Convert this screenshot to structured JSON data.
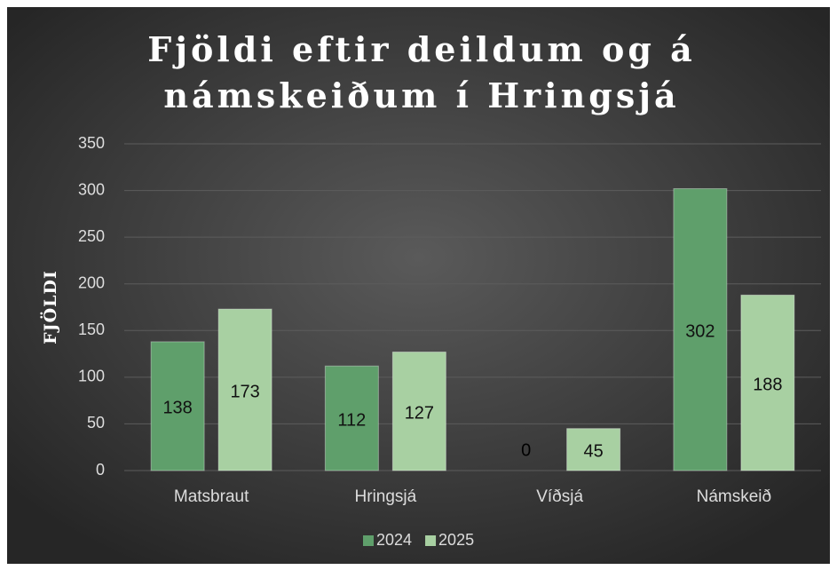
{
  "chart_data": {
    "type": "bar",
    "title": "Fjöldi eftir deildum og á námskeiðum í Hringsjá",
    "y_label": "FJÖLDI",
    "categories": [
      "Matsbraut",
      "Hringsjá",
      "Víðsjá",
      "Námskeið"
    ],
    "series": [
      {
        "name": "2024",
        "color": "#5f9f6b",
        "values": [
          138,
          112,
          0,
          302
        ]
      },
      {
        "name": "2025",
        "color": "#a8d0a2",
        "values": [
          173,
          127,
          45,
          188
        ]
      }
    ],
    "ylim": [
      0,
      350
    ],
    "yticks": [
      0,
      50,
      100,
      150,
      200,
      250,
      300,
      350
    ],
    "grid": true,
    "legend": "bottom",
    "data_labels": true
  }
}
